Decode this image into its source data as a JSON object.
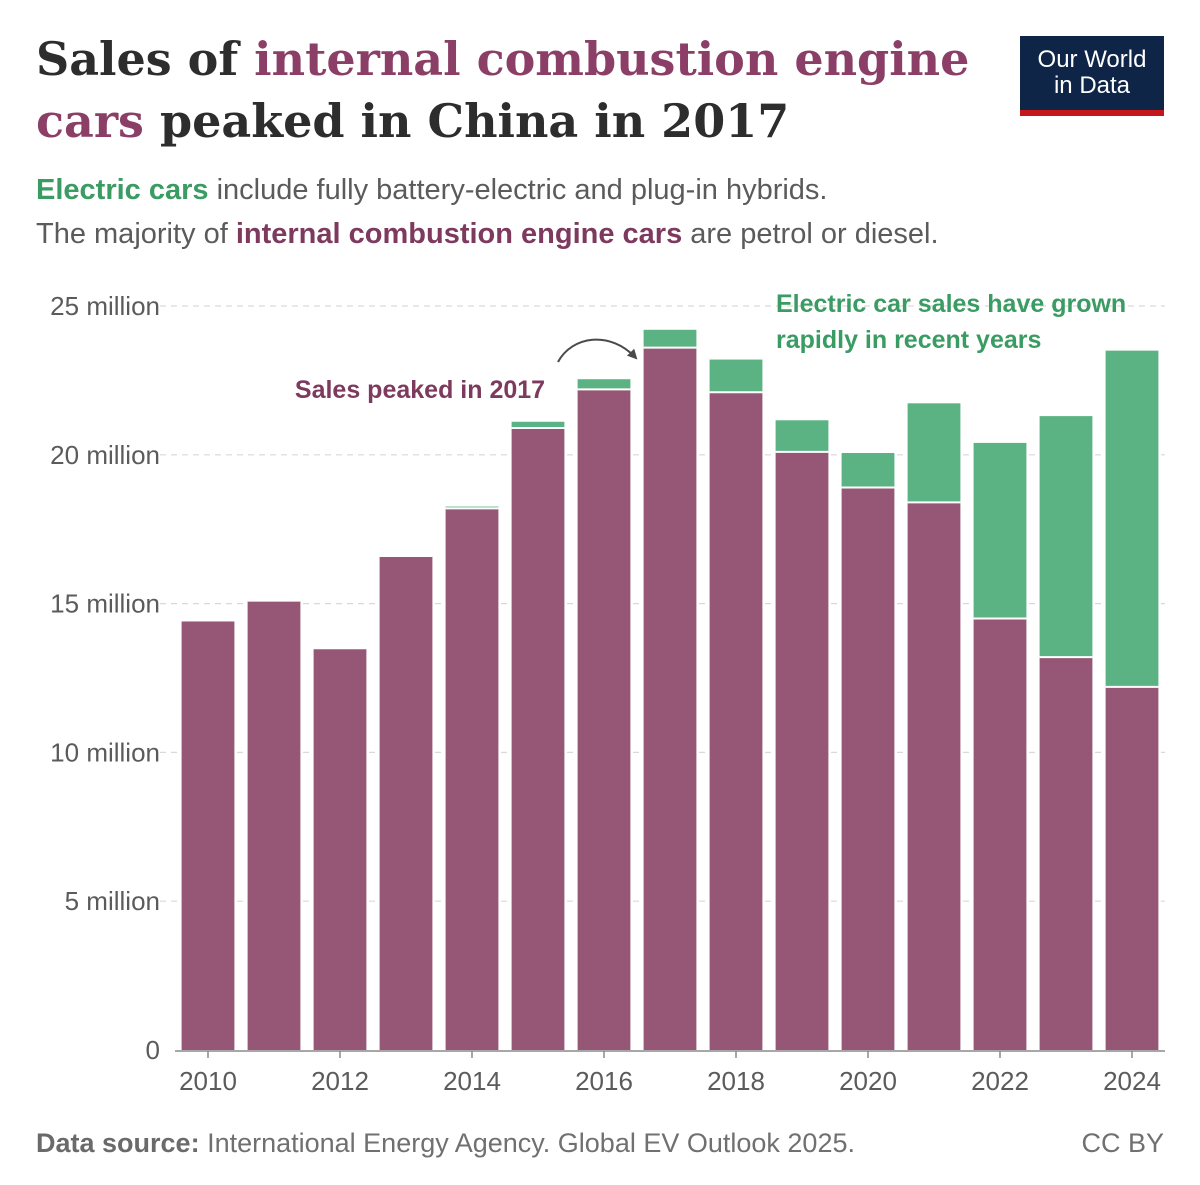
{
  "title": {
    "part1": "Sales of ",
    "highlight": "internal combustion engine cars",
    "part2": " peaked in China in 2017"
  },
  "subtitle": {
    "line1_highlight": "Electric cars",
    "line1_rest": " include fully battery-electric and plug-in hybrids.",
    "line2_start": "The majority of ",
    "line2_highlight": "internal combustion engine cars",
    "line2_end": " are petrol or diesel."
  },
  "logo": {
    "line1": "Our World",
    "line2": "in Data"
  },
  "footer": {
    "source_label": "Data source:",
    "source_text": " International Energy Agency. Global EV Outlook 2025.",
    "license": "CC BY"
  },
  "colors": {
    "ice": "#965776",
    "ev": "#5bb384",
    "ice_text": "#7d3a5e",
    "ev_text": "#3a9c63",
    "grid": "#dddddd",
    "axis_text": "#5b5b5b"
  },
  "chart_data": {
    "type": "bar",
    "stacked": true,
    "categories": [
      "2010",
      "2011",
      "2012",
      "2013",
      "2014",
      "2015",
      "2016",
      "2017",
      "2018",
      "2019",
      "2020",
      "2021",
      "2022",
      "2023",
      "2024"
    ],
    "series": [
      {
        "name": "internal combustion engine cars",
        "color": "#965776",
        "values": [
          14.4,
          15.1,
          13.5,
          16.6,
          18.2,
          20.9,
          22.2,
          23.6,
          22.1,
          20.1,
          18.9,
          18.4,
          14.5,
          13.2,
          12.2
        ]
      },
      {
        "name": "Electric cars",
        "color": "#5bb384",
        "values": [
          0.0,
          0.01,
          0.01,
          0.02,
          0.06,
          0.21,
          0.34,
          0.6,
          1.1,
          1.06,
          1.16,
          3.33,
          5.9,
          8.1,
          11.3
        ]
      }
    ],
    "ylim": [
      0,
      25
    ],
    "yticks": [
      0,
      5,
      10,
      15,
      20,
      25
    ],
    "ytick_labels": [
      "0",
      "5 million",
      "10 million",
      "15 million",
      "20 million",
      "25 million"
    ],
    "xtick_labels": [
      "2010",
      "2012",
      "2014",
      "2016",
      "2018",
      "2020",
      "2022",
      "2024"
    ],
    "grid": true,
    "annotations": {
      "peak": {
        "text": "Sales peaked in 2017",
        "year": "2017"
      },
      "ev": {
        "line1": "Electric car sales have grown",
        "line2": "rapidly in recent years"
      }
    }
  }
}
